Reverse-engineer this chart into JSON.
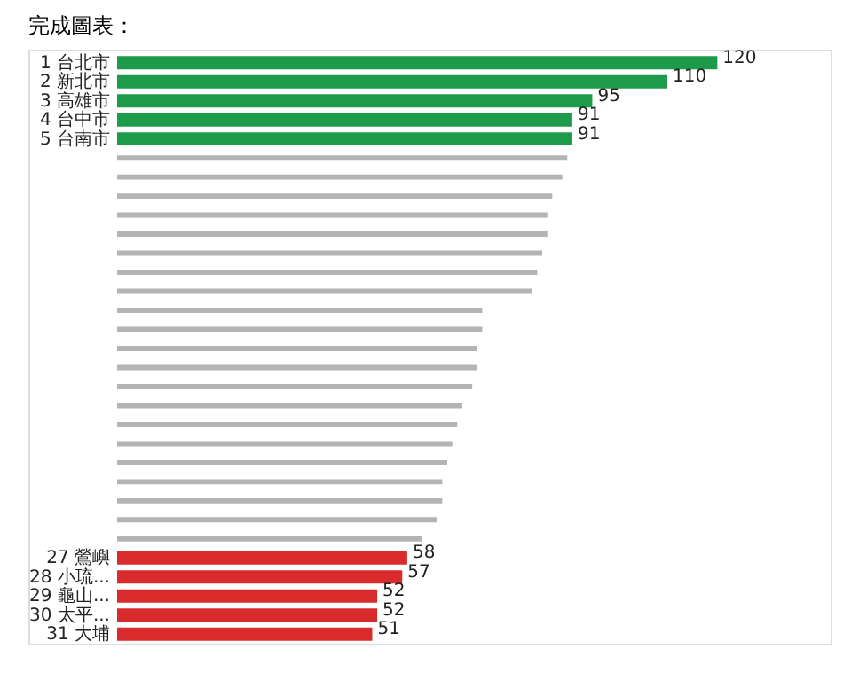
{
  "chart_data": {
    "type": "bar",
    "orientation": "horizontal",
    "title": "完成圖表：",
    "categories": [
      "1 台北市",
      "2 新北市",
      "3 高雄市",
      "4 台中市",
      "5 台南市",
      null,
      null,
      null,
      null,
      null,
      null,
      null,
      null,
      null,
      null,
      null,
      null,
      null,
      null,
      null,
      null,
      null,
      null,
      null,
      null,
      null,
      "27 鶯嶼",
      "28 小琉...",
      "29 龜山...",
      "30 太平...",
      "31 大埔"
    ],
    "values": [
      120,
      110,
      95,
      91,
      91,
      90,
      89,
      87,
      86,
      86,
      85,
      84,
      83,
      73,
      73,
      72,
      72,
      71,
      69,
      68,
      67,
      66,
      65,
      65,
      64,
      61,
      58,
      57,
      52,
      52,
      51
    ],
    "colors": [
      "#1e9a4b",
      "#1e9a4b",
      "#1e9a4b",
      "#1e9a4b",
      "#1e9a4b",
      "#b4b4b4",
      "#b4b4b4",
      "#b4b4b4",
      "#b4b4b4",
      "#b4b4b4",
      "#b4b4b4",
      "#b4b4b4",
      "#b4b4b4",
      "#b4b4b4",
      "#b4b4b4",
      "#b4b4b4",
      "#b4b4b4",
      "#b4b4b4",
      "#b4b4b4",
      "#b4b4b4",
      "#b4b4b4",
      "#b4b4b4",
      "#b4b4b4",
      "#b4b4b4",
      "#b4b4b4",
      "#b4b4b4",
      "#d92b2b",
      "#d92b2b",
      "#d92b2b",
      "#d92b2b",
      "#d92b2b"
    ],
    "value_labels": [
      "120",
      "110",
      "95",
      "91",
      "91",
      null,
      null,
      null,
      null,
      null,
      null,
      null,
      null,
      null,
      null,
      null,
      null,
      null,
      null,
      null,
      null,
      null,
      null,
      null,
      null,
      null,
      "58",
      "57",
      "52",
      "52",
      "51"
    ]
  }
}
